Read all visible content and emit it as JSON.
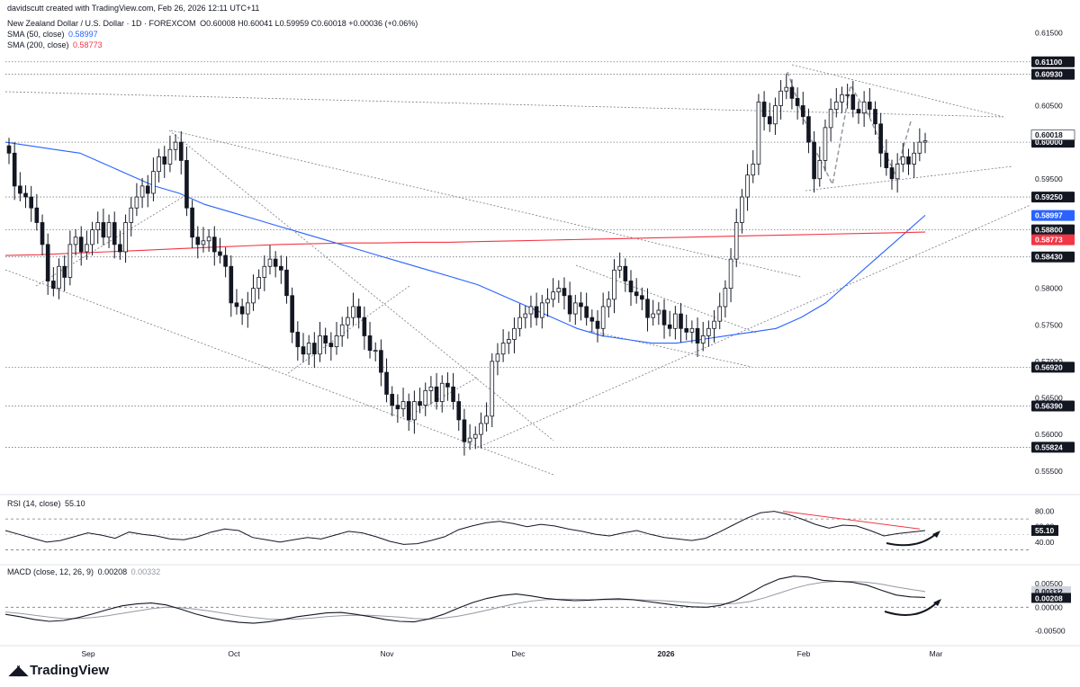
{
  "header": {
    "attribution": "davidscutt created with TradingView.com, Feb 26, 2026 12:11 UTC+11",
    "symbol": "New Zealand Dollar / U.S. Dollar · 1D · FOREXCOM",
    "ohlc": "O0.60008 H0.60041 L0.59959 C0.60018 +0.00036 (+0.06%)",
    "sma50_label": "SMA (50, close)",
    "sma50_value": "0.58997",
    "sma200_label": "SMA (200, close)",
    "sma200_value": "0.58773",
    "rsi_label": "RSI (14, close)",
    "rsi_value": "55.10",
    "macd_label": "MACD (close, 12, 26, 9)",
    "macd_value": "0.00208",
    "signal_value": "0.00332"
  },
  "branding": {
    "logo_text": "TradingView",
    "logo_icon": "tradingview-logo-icon"
  },
  "colors": {
    "sma50": "#2962ff",
    "sma200": "#f23645",
    "candle": "#131722",
    "grid_dotted": "#787b86",
    "macd_line": "#131722",
    "signal_line": "#9598a1",
    "resistance_tag": "#131722"
  },
  "chart_data": [
    {
      "type": "candlestick",
      "title": "New Zealand Dollar / U.S. Dollar · 1D · FOREXCOM",
      "xlabel": "",
      "ylabel": "",
      "x_tick_labels": [
        "Sep",
        "Oct",
        "Nov",
        "Dec",
        "2026",
        "Feb",
        "Mar"
      ],
      "y_tick_labels": [
        "0.61500",
        "0.60500",
        "0.59500",
        "0.58000",
        "0.57500",
        "0.57000",
        "0.56500",
        "0.56000",
        "0.55500"
      ],
      "ylim": [
        0.553,
        0.617
      ],
      "price_levels": [
        "0.61100",
        "0.60930",
        "0.60018",
        "0.60000",
        "0.59250",
        "0.58997",
        "0.58800",
        "0.58773",
        "0.58430",
        "0.56920",
        "0.56390",
        "0.55824"
      ],
      "horizontal_levels": [
        0.611,
        0.6093,
        0.6,
        0.5925,
        0.588,
        0.5843,
        0.5692,
        0.5639,
        0.55824
      ],
      "last_close": 0.60018,
      "candle_closes": [
        0.5985,
        0.594,
        0.593,
        0.5925,
        0.591,
        0.589,
        0.586,
        0.581,
        0.58,
        0.583,
        0.5815,
        0.586,
        0.587,
        0.585,
        0.586,
        0.588,
        0.589,
        0.587,
        0.589,
        0.586,
        0.585,
        0.589,
        0.591,
        0.5925,
        0.594,
        0.593,
        0.596,
        0.598,
        0.597,
        0.599,
        0.6,
        0.5975,
        0.591,
        0.587,
        0.586,
        0.5865,
        0.587,
        0.585,
        0.5845,
        0.583,
        0.578,
        0.5775,
        0.5765,
        0.578,
        0.58,
        0.5815,
        0.583,
        0.584,
        0.583,
        0.5825,
        0.579,
        0.574,
        0.572,
        0.571,
        0.5725,
        0.571,
        0.5735,
        0.5725,
        0.572,
        0.5735,
        0.575,
        0.576,
        0.5775,
        0.576,
        0.5735,
        0.5715,
        0.5715,
        0.5685,
        0.5655,
        0.564,
        0.5635,
        0.5645,
        0.562,
        0.5645,
        0.564,
        0.566,
        0.5665,
        0.5645,
        0.567,
        0.5665,
        0.5645,
        0.562,
        0.559,
        0.5595,
        0.56,
        0.5615,
        0.5625,
        0.57,
        0.571,
        0.5725,
        0.573,
        0.5745,
        0.576,
        0.5765,
        0.5775,
        0.576,
        0.578,
        0.5785,
        0.5795,
        0.58,
        0.579,
        0.5765,
        0.578,
        0.5775,
        0.576,
        0.5755,
        0.5745,
        0.5775,
        0.5785,
        0.5825,
        0.583,
        0.581,
        0.5795,
        0.579,
        0.5785,
        0.576,
        0.5765,
        0.577,
        0.575,
        0.5745,
        0.5765,
        0.5745,
        0.574,
        0.5745,
        0.5725,
        0.5735,
        0.5745,
        0.5755,
        0.5775,
        0.58,
        0.584,
        0.589,
        0.5925,
        0.5955,
        0.597,
        0.6055,
        0.6035,
        0.6025,
        0.605,
        0.607,
        0.6075,
        0.606,
        0.605,
        0.6035,
        0.6,
        0.595,
        0.5975,
        0.602,
        0.6045,
        0.6055,
        0.6065,
        0.6065,
        0.6045,
        0.604,
        0.6055,
        0.6045,
        0.6025,
        0.5985,
        0.5965,
        0.595,
        0.597,
        0.598,
        0.597,
        0.5985,
        0.6,
        0.60018
      ],
      "sma50": [
        0.6,
        0.5995,
        0.599,
        0.5985,
        0.597,
        0.5955,
        0.594,
        0.593,
        0.5915,
        0.5905,
        0.5895,
        0.5885,
        0.5875,
        0.5865,
        0.5855,
        0.5845,
        0.5835,
        0.5825,
        0.5815,
        0.5805,
        0.579,
        0.5775,
        0.576,
        0.5745,
        0.5735,
        0.573,
        0.5725,
        0.5725,
        0.573,
        0.5735,
        0.574,
        0.5745,
        0.576,
        0.578,
        0.581,
        0.584,
        0.587,
        0.59
      ],
      "sma200": [
        0.5845,
        0.5846,
        0.5848,
        0.585,
        0.5852,
        0.5854,
        0.5856,
        0.5858,
        0.586,
        0.5861,
        0.5862,
        0.5862,
        0.5863,
        0.5863,
        0.5864,
        0.5865,
        0.5866,
        0.5867,
        0.5868,
        0.5869,
        0.587,
        0.5871,
        0.5872,
        0.5873,
        0.5874,
        0.5875,
        0.5876,
        0.5877
      ],
      "series": [
        {
          "name": "SMA (50, close)",
          "last_value": 0.58997
        },
        {
          "name": "SMA (200, close)",
          "last_value": 0.58773
        }
      ]
    },
    {
      "type": "line",
      "title": "RSI (14, close)",
      "y_tick_labels": [
        "80.00",
        "60.00",
        "40.00"
      ],
      "ylim": [
        20,
        90
      ],
      "reference_lines": [
        70,
        30
      ],
      "values": [
        55,
        50,
        45,
        40,
        42,
        47,
        52,
        49,
        45,
        53,
        50,
        48,
        44,
        43,
        47,
        53,
        57,
        55,
        46,
        43,
        40,
        43,
        46,
        44,
        49,
        54,
        52,
        47,
        41,
        37,
        38,
        42,
        47,
        56,
        61,
        65,
        67,
        64,
        60,
        63,
        61,
        57,
        54,
        50,
        48,
        52,
        55,
        50,
        46,
        44,
        42,
        45,
        53,
        62,
        71,
        78,
        80,
        76,
        70,
        63,
        58,
        62,
        61,
        55,
        48,
        51,
        53,
        55
      ],
      "last_value": 55.1
    },
    {
      "type": "line",
      "title": "MACD (close, 12, 26, 9)",
      "y_tick_labels": [
        "0.00500",
        "0.00000",
        "-0.00500"
      ],
      "ylim": [
        -0.007,
        0.0075
      ],
      "series": [
        {
          "name": "MACD",
          "values": [
            -0.0015,
            -0.002,
            -0.0026,
            -0.003,
            -0.0028,
            -0.0022,
            -0.0014,
            -0.0005,
            0.0003,
            0.0007,
            0.0009,
            0.0005,
            -0.0004,
            -0.0014,
            -0.0022,
            -0.0028,
            -0.0032,
            -0.0034,
            -0.0031,
            -0.0026,
            -0.002,
            -0.0016,
            -0.0012,
            -0.0011,
            -0.0015,
            -0.002,
            -0.0026,
            -0.003,
            -0.0031,
            -0.0025,
            -0.0015,
            -0.0002,
            0.001,
            0.0019,
            0.0025,
            0.0028,
            0.0024,
            0.0019,
            0.0016,
            0.0014,
            0.0015,
            0.0017,
            0.0018,
            0.0016,
            0.0012,
            0.0008,
            0.0004,
            0.0001,
            0.0,
            0.0004,
            0.0014,
            0.003,
            0.0047,
            0.006,
            0.0066,
            0.0064,
            0.0057,
            0.0055,
            0.0053,
            0.0047,
            0.0036,
            0.0026,
            0.0022,
            0.00208
          ]
        },
        {
          "name": "Signal",
          "values": [
            -0.001,
            -0.0013,
            -0.0017,
            -0.0021,
            -0.0024,
            -0.0024,
            -0.0022,
            -0.0018,
            -0.0013,
            -0.0008,
            -0.0003,
            0.0,
            -0.0001,
            -0.0004,
            -0.0008,
            -0.0013,
            -0.0018,
            -0.0022,
            -0.0025,
            -0.0026,
            -0.0025,
            -0.0023,
            -0.002,
            -0.0018,
            -0.0017,
            -0.0017,
            -0.0019,
            -0.0021,
            -0.0024,
            -0.0025,
            -0.0023,
            -0.0019,
            -0.0013,
            -0.0006,
            0.0001,
            0.0008,
            0.0013,
            0.0016,
            0.0017,
            0.0017,
            0.0016,
            0.0016,
            0.0016,
            0.0016,
            0.0015,
            0.0014,
            0.0012,
            0.001,
            0.0008,
            0.0007,
            0.0008,
            0.0012,
            0.002,
            0.003,
            0.004,
            0.0048,
            0.0053,
            0.0055,
            0.0055,
            0.0053,
            0.0049,
            0.0043,
            0.0038,
            0.00332
          ]
        }
      ],
      "last_values": {
        "macd": 0.00208,
        "signal": 0.00332
      }
    }
  ]
}
